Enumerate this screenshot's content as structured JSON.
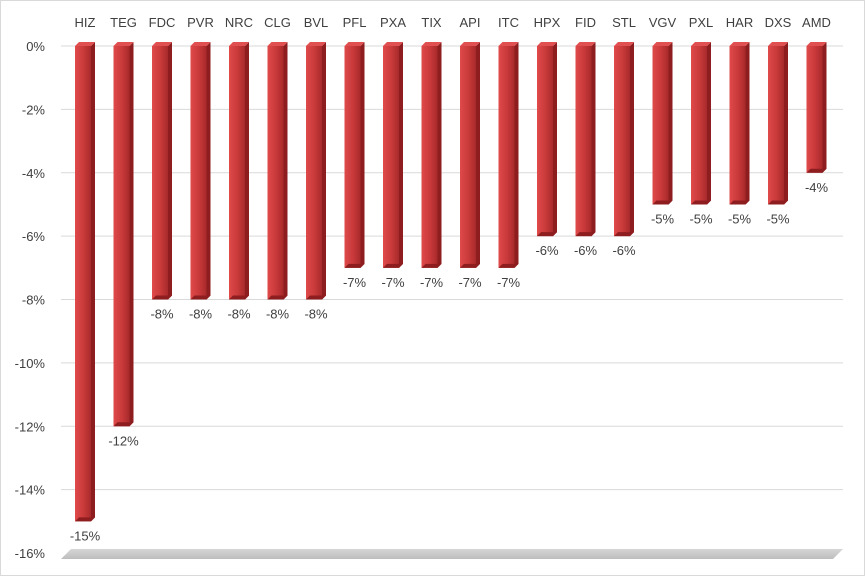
{
  "chart_data": {
    "type": "bar",
    "orientation": "vertical-negative",
    "categories": [
      "HIZ",
      "TEG",
      "FDC",
      "PVR",
      "NRC",
      "CLG",
      "BVL",
      "PFL",
      "PXA",
      "TIX",
      "API",
      "ITC",
      "HPX",
      "FID",
      "STL",
      "VGV",
      "PXL",
      "HAR",
      "DXS",
      "AMD"
    ],
    "values": [
      -15,
      -12,
      -8,
      -8,
      -8,
      -8,
      -8,
      -7,
      -7,
      -7,
      -7,
      -7,
      -6,
      -6,
      -6,
      -5,
      -5,
      -5,
      -5,
      -4
    ],
    "data_labels": [
      "-15%",
      "-12%",
      "-8%",
      "-8%",
      "-8%",
      "-8%",
      "-8%",
      "-7%",
      "-7%",
      "-7%",
      "-7%",
      "-7%",
      "-6%",
      "-6%",
      "-6%",
      "-5%",
      "-5%",
      "-5%",
      "-5%",
      "-4%"
    ],
    "y_ticks": [
      0,
      -2,
      -4,
      -6,
      -8,
      -10,
      -12,
      -14,
      -16
    ],
    "y_tick_labels": [
      "0%",
      "-2%",
      "-4%",
      "-6%",
      "-8%",
      "-10%",
      "-12%",
      "-14%",
      "-16%"
    ],
    "ylim": [
      -16,
      0
    ],
    "title": "",
    "xlabel": "",
    "ylabel": "",
    "grid": true,
    "category_labels_position": "top",
    "bar_color": "#c8393a",
    "bar_color_dark": "#8e1d1f",
    "bar_color_light": "#e05050",
    "floor_color": "#c8c8c8"
  }
}
